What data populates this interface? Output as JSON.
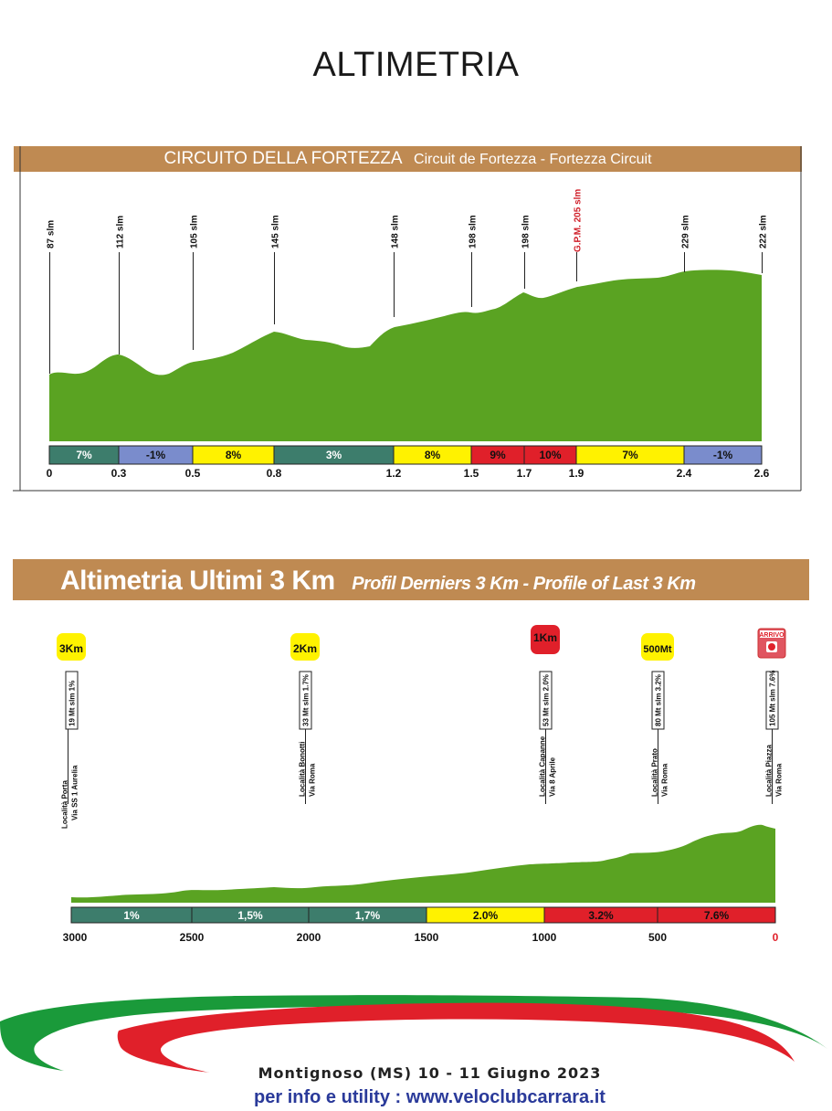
{
  "page_title": "ALTIMETRIA",
  "circuit": {
    "title": "CIRCUITO DELLA FORTEZZA",
    "subtitle": "Circuit de Fortezza - Fortezza Circuit",
    "altitudes": [
      {
        "km": 0,
        "label": "87 slm",
        "color": "#111111"
      },
      {
        "km": 0.3,
        "label": "112 slm",
        "color": "#111111"
      },
      {
        "km": 0.5,
        "label": "105 slm",
        "color": "#111111"
      },
      {
        "km": 0.8,
        "label": "145 slm",
        "color": "#111111"
      },
      {
        "km": 1.2,
        "label": "148 slm",
        "color": "#111111"
      },
      {
        "km": 1.5,
        "label": "198 slm",
        "color": "#111111"
      },
      {
        "km": 1.7,
        "label": "198 slm",
        "color": "#111111"
      },
      {
        "km": 1.9,
        "label": "G.P.M. 205 slm",
        "color": "#d0202a"
      },
      {
        "km": 2.4,
        "label": "229 slm",
        "color": "#111111"
      },
      {
        "km": 2.6,
        "label": "222 slm",
        "color": "#111111"
      }
    ],
    "km_ticks": [
      "0",
      "0.3",
      "0.5",
      "0.8",
      "1.2",
      "1.5",
      "1.7",
      "1.9",
      "2.4",
      "2.6"
    ],
    "segments": [
      {
        "from": 0,
        "to": 0.3,
        "label": "7%",
        "color": "#3d7d6c"
      },
      {
        "from": 0.3,
        "to": 0.5,
        "label": "-1%",
        "color": "#7a8ccc"
      },
      {
        "from": 0.5,
        "to": 0.8,
        "label": "8%",
        "color": "#fff200"
      },
      {
        "from": 0.8,
        "to": 1.2,
        "label": "3%",
        "color": "#3d7d6c"
      },
      {
        "from": 1.2,
        "to": 1.5,
        "label": "8%",
        "color": "#fff200"
      },
      {
        "from": 1.5,
        "to": 1.7,
        "label": "9%",
        "color": "#e0202a"
      },
      {
        "from": 1.7,
        "to": 1.9,
        "label": "10%",
        "color": "#e0202a"
      },
      {
        "from": 1.9,
        "to": 2.4,
        "label": "7%",
        "color": "#fff200"
      },
      {
        "from": 2.4,
        "to": 2.6,
        "label": "-1%",
        "color": "#7a8ccc"
      }
    ]
  },
  "last3km": {
    "title": "Altimetria Ultimi 3 Km",
    "subtitle": "Profil  Derniers 3 Km - Profile of Last 3 Km",
    "markers": [
      {
        "dist": 3000,
        "badge": "3Km",
        "badge_color": "#fff200",
        "badge_text_color": "#111111",
        "alt": "19 Mt slm 1%",
        "place": "Località Porta",
        "road": "Via SS 1 Aurelia"
      },
      {
        "dist": 2000,
        "badge": "2Km",
        "badge_color": "#fff200",
        "badge_text_color": "#111111",
        "alt": "33 Mt slm 1.7%",
        "place": "Località Bonotti",
        "road": "Via Roma"
      },
      {
        "dist": 1000,
        "badge": "1Km",
        "badge_color": "#e0202a",
        "badge_text_color": "#111111",
        "alt": "53 Mt slm 2.0%",
        "place": "Località Capanne",
        "road": "Via 8 Aprile"
      },
      {
        "dist": 500,
        "badge": "500Mt",
        "badge_color": "#fff200",
        "badge_text_color": "#111111",
        "alt": "80 Mt slm 3.2%",
        "place": "Località Prato",
        "road": "Via Roma"
      },
      {
        "dist": 0,
        "badge": "ARRIVO",
        "badge_color": "#e05560",
        "badge_text_color": "#ffffff",
        "alt": "105 Mt slm 7.6%",
        "place": "Località Piazza",
        "road": "Via Roma"
      }
    ],
    "dist_ticks": [
      {
        "label": "3000",
        "color": "#111111"
      },
      {
        "label": "2500",
        "color": "#111111"
      },
      {
        "label": "2000",
        "color": "#111111"
      },
      {
        "label": "1500",
        "color": "#111111"
      },
      {
        "label": "1000",
        "color": "#111111"
      },
      {
        "label": "500",
        "color": "#111111"
      },
      {
        "label": "0",
        "color": "#e0202a"
      }
    ],
    "segments": [
      {
        "from": 3000,
        "to": 2500,
        "label": "1%",
        "color": "#3d7d6c"
      },
      {
        "from": 2500,
        "to": 2000,
        "label": "1,5%",
        "color": "#3d7d6c"
      },
      {
        "from": 2000,
        "to": 1500,
        "label": "1,7%",
        "color": "#3d7d6c"
      },
      {
        "from": 1500,
        "to": 1000,
        "label": "2.0%",
        "color": "#fff200"
      },
      {
        "from": 1000,
        "to": 500,
        "label": "3.2%",
        "color": "#e0202a"
      },
      {
        "from": 500,
        "to": 0,
        "label": "7.6%",
        "color": "#e0202a"
      }
    ]
  },
  "footer": {
    "event": "Montignoso (MS) 10 - 11 Giugno 2023",
    "info": "per info e utility : www.veloclubcarrara.it"
  },
  "colors": {
    "profile_green": "#5aa322",
    "banner": "#bf8a52",
    "flag_green": "#1a9a3a",
    "flag_red": "#e0202a"
  }
}
